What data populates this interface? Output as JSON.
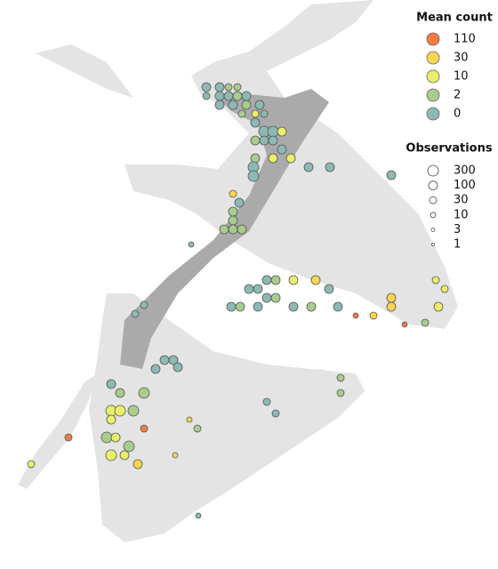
{
  "legend": {
    "mean_count": {
      "title": "Mean count",
      "items": [
        {
          "label": 110,
          "color": "#f47b42"
        },
        {
          "label": 30,
          "color": "#fdd54f"
        },
        {
          "label": 10,
          "color": "#e9ef6a"
        },
        {
          "label": 2,
          "color": "#a9cc8d"
        },
        {
          "label": 0,
          "color": "#8db9b5"
        }
      ]
    },
    "observations": {
      "title": "Observations",
      "items": [
        {
          "label": 300
        },
        {
          "label": 100
        },
        {
          "label": 30
        },
        {
          "label": 10
        },
        {
          "label": 3
        },
        {
          "label": 1
        }
      ]
    }
  },
  "points": [
    [
      23.2,
      9.8,
      0,
      100
    ],
    [
      24.7,
      9.8,
      0,
      100
    ],
    [
      25.7,
      9.8,
      2,
      30
    ],
    [
      26.7,
      9.8,
      2,
      30
    ],
    [
      23.2,
      10.8,
      0,
      30
    ],
    [
      24.7,
      10.8,
      0,
      100
    ],
    [
      25.7,
      10.8,
      0,
      100
    ],
    [
      26.7,
      10.8,
      2,
      100
    ],
    [
      27.7,
      10.8,
      0,
      100
    ],
    [
      24.7,
      11.8,
      0,
      100
    ],
    [
      26.2,
      11.8,
      0,
      100
    ],
    [
      27.7,
      11.8,
      2,
      100
    ],
    [
      29.2,
      11.8,
      0,
      100
    ],
    [
      27.2,
      12.8,
      2,
      30
    ],
    [
      28.7,
      12.8,
      10,
      30
    ],
    [
      29.7,
      12.8,
      0,
      30
    ],
    [
      28.7,
      13.8,
      0,
      100
    ],
    [
      29.7,
      14.8,
      0,
      300
    ],
    [
      30.7,
      14.8,
      0,
      300
    ],
    [
      31.7,
      14.8,
      10,
      100
    ],
    [
      28.7,
      15.8,
      2,
      100
    ],
    [
      29.7,
      15.8,
      0,
      100
    ],
    [
      30.7,
      15.8,
      0,
      100
    ],
    [
      31.7,
      16.8,
      0,
      100
    ],
    [
      28.7,
      17.8,
      2,
      100
    ],
    [
      30.7,
      17.8,
      10,
      100
    ],
    [
      32.7,
      17.8,
      10,
      100
    ],
    [
      34.7,
      18.8,
      0,
      100
    ],
    [
      37.1,
      18.8,
      0,
      100
    ],
    [
      28.5,
      18.8,
      0,
      300
    ],
    [
      28.5,
      19.8,
      0,
      300
    ],
    [
      26.2,
      21.8,
      30,
      30
    ],
    [
      26.9,
      22.8,
      0,
      100
    ],
    [
      26.2,
      23.8,
      2,
      100
    ],
    [
      26.2,
      24.8,
      2,
      100
    ],
    [
      26.2,
      25.8,
      2,
      100
    ],
    [
      25.2,
      25.8,
      2,
      100
    ],
    [
      27.2,
      25.8,
      2,
      100
    ],
    [
      21.5,
      27.5,
      0,
      10
    ],
    [
      30.0,
      31.5,
      0,
      100
    ],
    [
      31.0,
      31.5,
      2,
      100
    ],
    [
      33.0,
      31.5,
      10,
      100
    ],
    [
      35.5,
      31.5,
      30,
      100
    ],
    [
      37.0,
      32.5,
      0,
      100
    ],
    [
      28.0,
      32.5,
      0,
      100
    ],
    [
      29.0,
      32.5,
      0,
      100
    ],
    [
      30.0,
      33.5,
      0,
      100
    ],
    [
      31.0,
      33.5,
      2,
      100
    ],
    [
      26.0,
      34.5,
      0,
      100
    ],
    [
      27.0,
      34.5,
      2,
      100
    ],
    [
      29.0,
      34.5,
      0,
      100
    ],
    [
      33.0,
      34.5,
      0,
      100
    ],
    [
      35.0,
      34.5,
      2,
      100
    ],
    [
      38.0,
      34.5,
      0,
      100
    ],
    [
      44.0,
      33.5,
      30,
      100
    ],
    [
      44.0,
      34.5,
      30,
      100
    ],
    [
      42.0,
      35.5,
      30,
      30
    ],
    [
      40.0,
      35.5,
      110,
      10
    ],
    [
      45.5,
      36.5,
      110,
      10
    ],
    [
      49.0,
      31.5,
      10,
      30
    ],
    [
      50.0,
      32.5,
      10,
      30
    ],
    [
      49.3,
      34.5,
      10,
      100
    ],
    [
      47.8,
      36.3,
      2,
      30
    ],
    [
      16.2,
      34.3,
      0,
      30
    ],
    [
      15.2,
      35.3,
      0,
      30
    ],
    [
      18.5,
      40.5,
      0,
      100
    ],
    [
      19.5,
      40.5,
      0,
      100
    ],
    [
      20.0,
      41.3,
      0,
      100
    ],
    [
      17.5,
      41.5,
      0,
      100
    ],
    [
      12.5,
      43.2,
      0,
      100
    ],
    [
      13.5,
      44.2,
      2,
      100
    ],
    [
      16.2,
      44.2,
      2,
      300
    ],
    [
      12.5,
      46.2,
      10,
      300
    ],
    [
      13.5,
      46.2,
      10,
      300
    ],
    [
      15.0,
      46.2,
      2,
      300
    ],
    [
      12.5,
      47.2,
      10,
      100
    ],
    [
      12.0,
      49.2,
      2,
      300
    ],
    [
      13.0,
      49.2,
      10,
      100
    ],
    [
      14.5,
      50.2,
      2,
      300
    ],
    [
      12.5,
      51.2,
      10,
      300
    ],
    [
      14.0,
      51.2,
      10,
      100
    ],
    [
      15.5,
      52.2,
      30,
      100
    ],
    [
      16.2,
      48.2,
      110,
      30
    ],
    [
      7.7,
      49.2,
      110,
      30
    ],
    [
      3.5,
      52.2,
      10,
      30
    ],
    [
      21.3,
      47.2,
      30,
      10
    ],
    [
      22.2,
      48.2,
      2,
      30
    ],
    [
      19.7,
      51.2,
      30,
      10
    ],
    [
      38.3,
      44.2,
      2,
      30
    ],
    [
      30.0,
      45.2,
      0,
      30
    ],
    [
      31.0,
      46.5,
      0,
      30
    ],
    [
      38.3,
      42.5,
      2,
      30
    ],
    [
      44.0,
      19.7,
      0,
      100
    ],
    [
      22.3,
      58.0,
      0,
      10
    ]
  ]
}
